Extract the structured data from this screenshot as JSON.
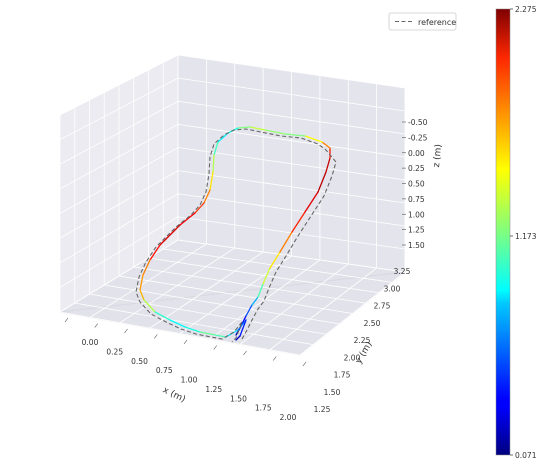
{
  "chart_data": {
    "type": "line",
    "projection": "3d",
    "xlabel": "x (m)",
    "ylabel": "y (m)",
    "zlabel": "z (m)",
    "x_ticks": [
      "0.00",
      "0.25",
      "0.50",
      "0.75",
      "1.00",
      "1.25",
      "1.50",
      "1.75",
      "2.00"
    ],
    "y_ticks": [
      "1.25",
      "1.50",
      "1.75",
      "2.00",
      "2.25",
      "2.50",
      "2.75",
      "3.00",
      "3.25"
    ],
    "z_ticks": [
      "-0.50",
      "-0.25",
      "0.00",
      "0.25",
      "0.50",
      "0.75",
      "1.00",
      "1.25",
      "1.50"
    ],
    "xlim": [
      0.0,
      2.0
    ],
    "ylim": [
      1.25,
      3.25
    ],
    "zlim": [
      -0.5,
      1.5
    ],
    "grid": true,
    "legend": {
      "position": "top-right",
      "entries": [
        "reference"
      ]
    },
    "colorbar": {
      "colormap": "jet",
      "min_label": "0.071",
      "mid_label": "1.173",
      "max_label": "2.275",
      "min": 0.071,
      "max": 2.275
    },
    "colors": {
      "pane": "#e9e9f1",
      "grid": "#ffffff",
      "reference": "#666666"
    }
  }
}
